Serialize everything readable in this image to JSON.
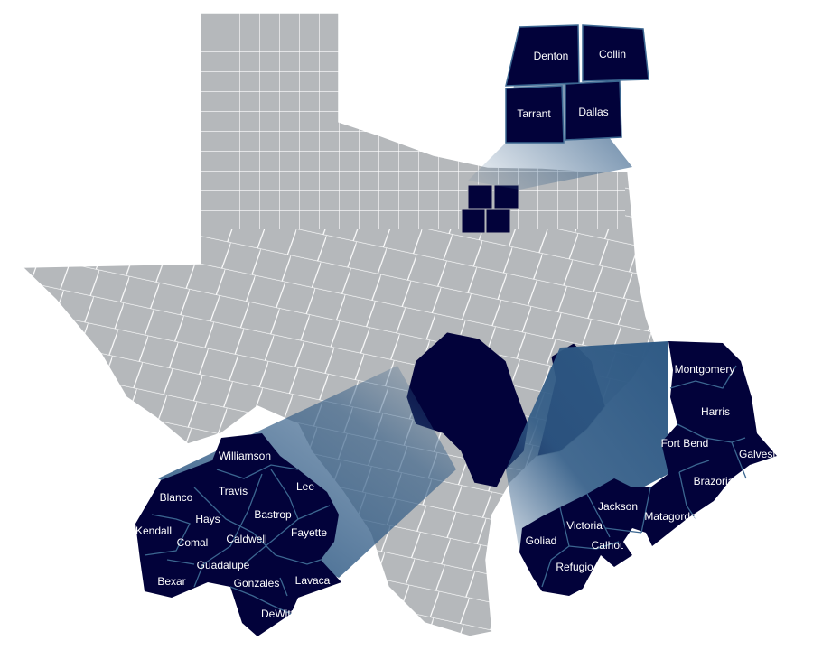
{
  "map": {
    "colors": {
      "base_county": "#b5b8bb",
      "border": "#ffffff",
      "highlight": "#02023a",
      "callout": "#2f5a85",
      "divider": "#3b6690"
    },
    "insets": [
      {
        "name": "dfw",
        "counties": [
          "Denton",
          "Collin",
          "Tarrant",
          "Dallas"
        ]
      },
      {
        "name": "central",
        "counties": [
          "Williamson",
          "Blanco",
          "Travis",
          "Lee",
          "Hays",
          "Bastrop",
          "Kendall",
          "Comal",
          "Caldwell",
          "Fayette",
          "Guadalupe",
          "Bexar",
          "Gonzales",
          "Lavaca",
          "DeWitt"
        ]
      },
      {
        "name": "coast",
        "counties": [
          "Montgomery",
          "Harris",
          "Fort Bend",
          "Galveston",
          "Brazoria",
          "Jackson",
          "Matagorda",
          "Victoria",
          "Goliad",
          "Calhoun",
          "Refugio"
        ]
      }
    ]
  }
}
